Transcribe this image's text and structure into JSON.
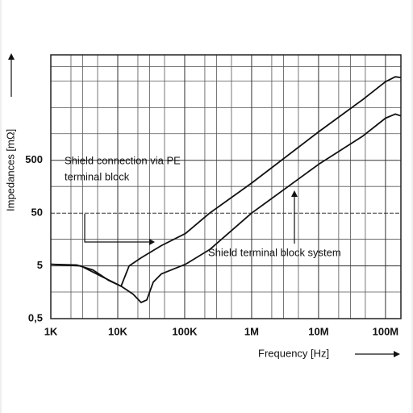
{
  "chart_data": {
    "type": "line",
    "xlabel": "Frequency [Hz]",
    "ylabel": "Impedances [mΩ]",
    "xscale": "log",
    "yscale": "log",
    "grid": true,
    "xlim": [
      1000,
      170000000
    ],
    "ylim": [
      0.5,
      50000
    ],
    "xticks": [
      {
        "value": 1000,
        "label": "1K"
      },
      {
        "value": 10000,
        "label": "10K"
      },
      {
        "value": 100000,
        "label": "100K"
      },
      {
        "value": 1000000,
        "label": "1M"
      },
      {
        "value": 10000000,
        "label": "10M"
      },
      {
        "value": 100000000,
        "label": "100M"
      }
    ],
    "yticks": [
      {
        "value": 0.5,
        "label": "0,5"
      },
      5,
      50,
      500
    ],
    "xminor": [
      2000,
      3000,
      5000,
      20000,
      30000,
      50000,
      200000,
      300000,
      500000,
      2000000,
      3000000,
      5000000,
      20000000,
      30000000,
      50000000
    ],
    "yminor": [
      1.6,
      16,
      160,
      1600,
      5000,
      16000,
      30000
    ],
    "series": [
      {
        "color": "#111111",
        "x": [
          1000,
          2430,
          4240,
          7360,
          11200,
          14800,
          22300,
          44800,
          103000,
          236000,
          1000000,
          10000000,
          46000000,
          100000000,
          140000000,
          170000000
        ],
        "values": [
          5.37,
          5.2,
          4.19,
          2.64,
          2.06,
          5,
          7.1,
          12.1,
          20.6,
          50,
          185,
          1730,
          7130,
          15500,
          19200,
          18600
        ]
      },
      {
        "color": "#111111",
        "x": [
          1000,
          2790,
          6410,
          11200,
          17000,
          22300,
          27200,
          33900,
          44800,
          103000,
          236000,
          1000000,
          10000000,
          46000000,
          100000000,
          140000000,
          170000000
        ],
        "values": [
          5.37,
          5,
          2.94,
          2.06,
          1.45,
          1.01,
          1.13,
          2.46,
          3.51,
          5.37,
          10.2,
          50,
          419,
          1450,
          3150,
          3770,
          3480
        ]
      }
    ],
    "annotations": [
      "Shield connection via PE",
      "terminal block",
      "Shield terminal block system"
    ]
  }
}
